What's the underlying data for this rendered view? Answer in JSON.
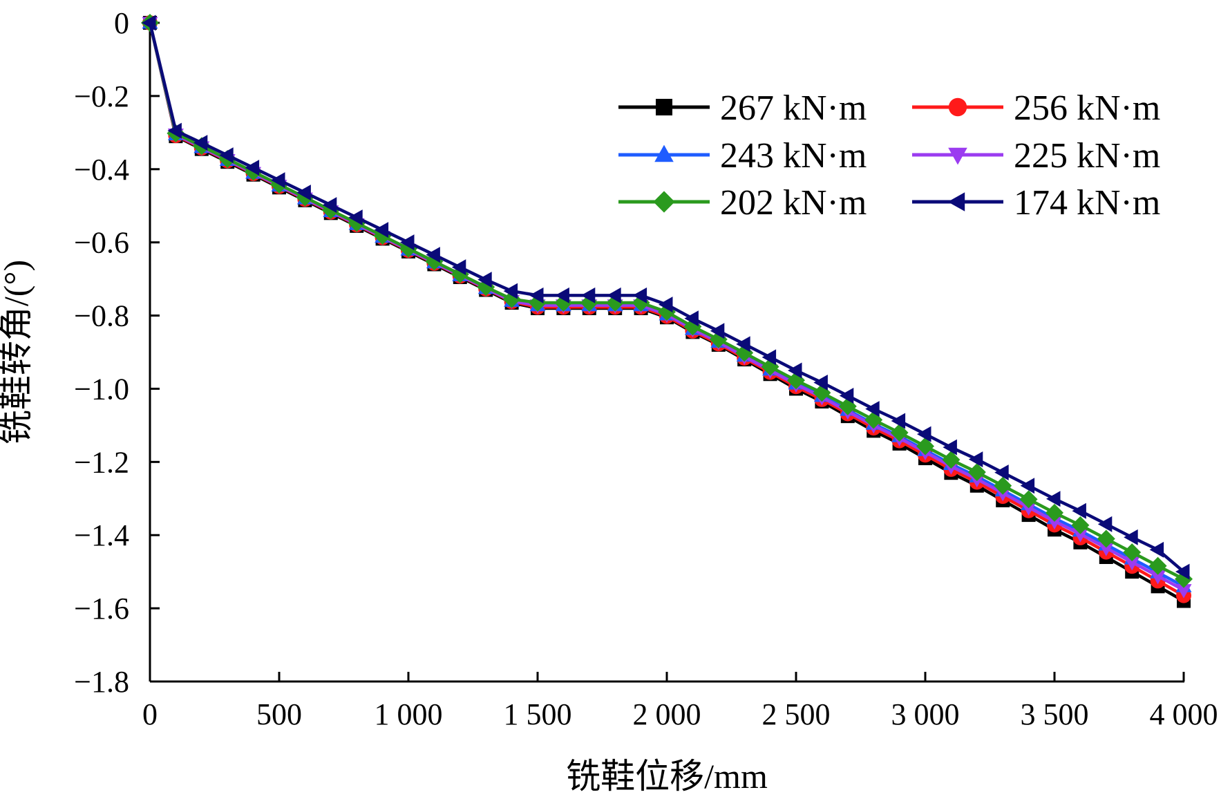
{
  "chart_data": {
    "type": "line",
    "title": "",
    "xlabel": "铣鞋位移/mm",
    "ylabel": "铣鞋转角/(°)",
    "xlim": [
      0,
      4000
    ],
    "ylim": [
      -1.8,
      0
    ],
    "x_ticks": [
      0,
      500,
      1000,
      1500,
      2000,
      2500,
      3000,
      3500,
      4000
    ],
    "x_tick_labels": [
      "0",
      "500",
      "1 000",
      "1 500",
      "2 000",
      "2 500",
      "3 000",
      "3 500",
      "4 000"
    ],
    "y_ticks": [
      0,
      -0.2,
      -0.4,
      -0.6,
      -0.8,
      -1.0,
      -1.2,
      -1.4,
      -1.6,
      -1.8
    ],
    "y_tick_labels": [
      "0",
      "−0.2",
      "−0.4",
      "−0.6",
      "−0.8",
      "−1.0",
      "−1.2",
      "−1.4",
      "−1.6",
      "−1.8"
    ],
    "grid": false,
    "legend_position": "top-right",
    "x": [
      0,
      100,
      200,
      300,
      400,
      500,
      600,
      700,
      800,
      900,
      1000,
      1100,
      1200,
      1300,
      1400,
      1500,
      1600,
      1700,
      1800,
      1900,
      2000,
      2100,
      2200,
      2300,
      2400,
      2500,
      2600,
      2700,
      2800,
      2900,
      3000,
      3100,
      3200,
      3300,
      3400,
      3500,
      3600,
      3700,
      3800,
      3900,
      4000
    ],
    "series": [
      {
        "name": "267 kN·m",
        "color": "#000000",
        "marker": "square",
        "values": [
          0,
          -0.31,
          -0.345,
          -0.38,
          -0.415,
          -0.45,
          -0.485,
          -0.52,
          -0.555,
          -0.59,
          -0.625,
          -0.66,
          -0.695,
          -0.73,
          -0.765,
          -0.78,
          -0.78,
          -0.78,
          -0.78,
          -0.78,
          -0.805,
          -0.845,
          -0.88,
          -0.92,
          -0.96,
          -1.0,
          -1.035,
          -1.075,
          -1.115,
          -1.15,
          -1.19,
          -1.23,
          -1.265,
          -1.305,
          -1.345,
          -1.385,
          -1.42,
          -1.46,
          -1.5,
          -1.54,
          -1.58
        ]
      },
      {
        "name": "256 kN·m",
        "color": "#ff1a1a",
        "marker": "circle",
        "values": [
          0,
          -0.308,
          -0.342,
          -0.377,
          -0.412,
          -0.447,
          -0.482,
          -0.517,
          -0.552,
          -0.587,
          -0.622,
          -0.657,
          -0.692,
          -0.727,
          -0.762,
          -0.777,
          -0.777,
          -0.777,
          -0.777,
          -0.777,
          -0.802,
          -0.842,
          -0.877,
          -0.916,
          -0.955,
          -0.994,
          -1.029,
          -1.068,
          -1.107,
          -1.142,
          -1.181,
          -1.22,
          -1.255,
          -1.294,
          -1.333,
          -1.372,
          -1.407,
          -1.446,
          -1.485,
          -1.525,
          -1.565
        ]
      },
      {
        "name": "243 kN·m",
        "color": "#1f5cff",
        "marker": "triangle-up",
        "values": [
          0,
          -0.305,
          -0.34,
          -0.375,
          -0.41,
          -0.445,
          -0.48,
          -0.515,
          -0.55,
          -0.585,
          -0.62,
          -0.655,
          -0.69,
          -0.725,
          -0.76,
          -0.772,
          -0.772,
          -0.772,
          -0.772,
          -0.772,
          -0.797,
          -0.837,
          -0.872,
          -0.91,
          -0.948,
          -0.986,
          -1.02,
          -1.058,
          -1.096,
          -1.13,
          -1.168,
          -1.206,
          -1.24,
          -1.278,
          -1.316,
          -1.354,
          -1.388,
          -1.426,
          -1.464,
          -1.502,
          -1.54
        ]
      },
      {
        "name": "225 kN·m",
        "color": "#9b3cf0",
        "marker": "triangle-down",
        "values": [
          0,
          -0.305,
          -0.34,
          -0.375,
          -0.41,
          -0.445,
          -0.48,
          -0.515,
          -0.55,
          -0.585,
          -0.62,
          -0.655,
          -0.69,
          -0.725,
          -0.76,
          -0.772,
          -0.772,
          -0.772,
          -0.772,
          -0.772,
          -0.797,
          -0.837,
          -0.872,
          -0.912,
          -0.95,
          -0.988,
          -1.023,
          -1.062,
          -1.1,
          -1.135,
          -1.173,
          -1.212,
          -1.247,
          -1.285,
          -1.324,
          -1.362,
          -1.397,
          -1.435,
          -1.474,
          -1.512,
          -1.55
        ]
      },
      {
        "name": "202 kN·m",
        "color": "#2a9a1e",
        "marker": "diamond",
        "values": [
          0,
          -0.302,
          -0.337,
          -0.372,
          -0.407,
          -0.442,
          -0.477,
          -0.512,
          -0.547,
          -0.582,
          -0.617,
          -0.652,
          -0.687,
          -0.722,
          -0.755,
          -0.765,
          -0.765,
          -0.765,
          -0.765,
          -0.765,
          -0.79,
          -0.83,
          -0.865,
          -0.902,
          -0.94,
          -0.977,
          -1.011,
          -1.048,
          -1.085,
          -1.12,
          -1.157,
          -1.194,
          -1.228,
          -1.265,
          -1.302,
          -1.339,
          -1.373,
          -1.41,
          -1.447,
          -1.484,
          -1.52
        ]
      },
      {
        "name": "174 kN·m",
        "color": "#0a0a78",
        "marker": "triangle-left",
        "values": [
          0,
          -0.295,
          -0.328,
          -0.362,
          -0.396,
          -0.43,
          -0.464,
          -0.498,
          -0.532,
          -0.566,
          -0.6,
          -0.634,
          -0.668,
          -0.702,
          -0.733,
          -0.745,
          -0.745,
          -0.745,
          -0.745,
          -0.745,
          -0.77,
          -0.808,
          -0.842,
          -0.878,
          -0.914,
          -0.95,
          -0.983,
          -1.019,
          -1.055,
          -1.088,
          -1.124,
          -1.16,
          -1.193,
          -1.229,
          -1.265,
          -1.301,
          -1.334,
          -1.37,
          -1.406,
          -1.44,
          -1.5
        ]
      }
    ]
  }
}
